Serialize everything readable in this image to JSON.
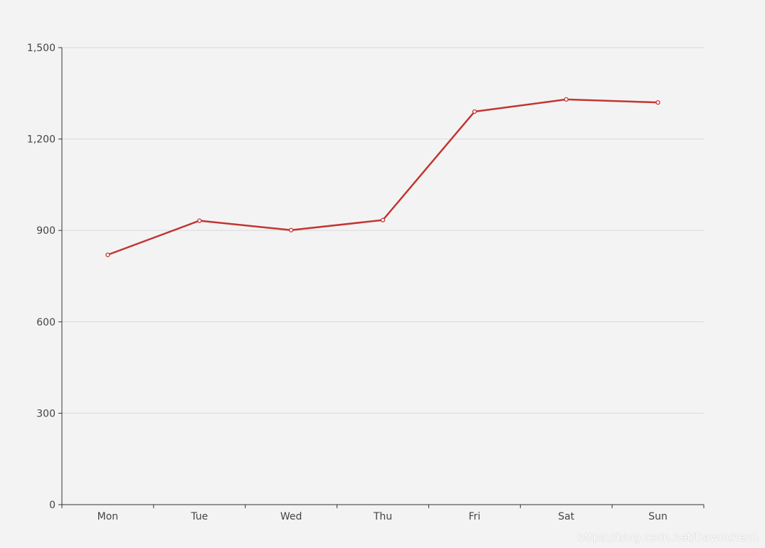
{
  "chart_data": {
    "type": "line",
    "title": "",
    "xlabel": "",
    "ylabel": "",
    "categories": [
      "Mon",
      "Tue",
      "Wed",
      "Thu",
      "Fri",
      "Sat",
      "Sun"
    ],
    "series": [
      {
        "values": [
          820,
          932,
          901,
          934,
          1290,
          1330,
          1320
        ],
        "color": "#c23531"
      }
    ],
    "ylim": [
      0,
      1500
    ],
    "yticks": [
      0,
      300,
      600,
      900,
      1200,
      1500
    ],
    "ytick_labels": [
      "0",
      "300",
      "600",
      "900",
      "1,200",
      "1,500"
    ],
    "grid": true,
    "colors": {
      "background": "#f3f3f3",
      "grid": "#d9d9d9",
      "axis": "#333333",
      "line": "#c23531"
    }
  },
  "watermark": "https://blog.csdn.net/Dawnchen1"
}
